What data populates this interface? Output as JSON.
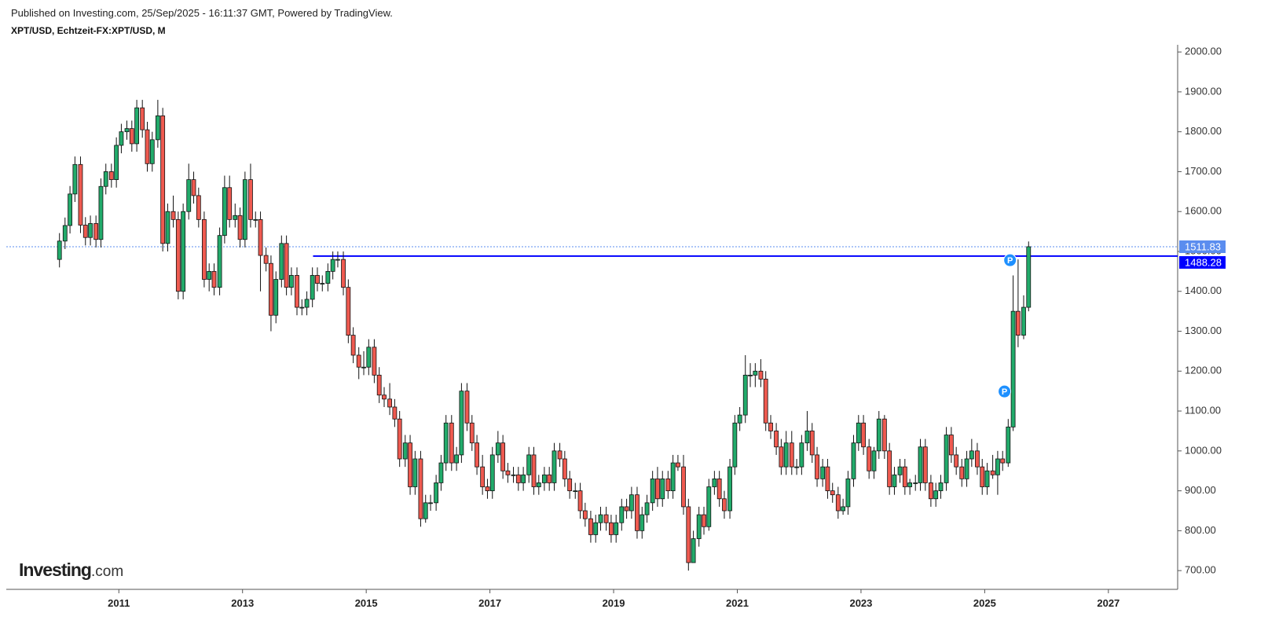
{
  "header": {
    "published": "Published on Investing.com, 25/Sep/2025 - 16:11:37 GMT, Powered by TradingView.",
    "symbol": "XPT/USD, Echtzeit-FX:XPT/USD, M"
  },
  "logo": {
    "brand": "Investing",
    "suffix": ".com"
  },
  "chart_data": {
    "type": "candlestick",
    "up_color": "#22ab6b",
    "down_color": "#ef5a50",
    "xlim": [
      2009.18,
      2028.12
    ],
    "xticks": [
      2011,
      2013,
      2015,
      2017,
      2019,
      2021,
      2023,
      2025,
      2027
    ],
    "ylim": [
      653,
      2018
    ],
    "yticks": [
      {
        "value": 700,
        "label": "700.00"
      },
      {
        "value": 800,
        "label": "800.00"
      },
      {
        "value": 900,
        "label": "900.00"
      },
      {
        "value": 1000,
        "label": "1000.00"
      },
      {
        "value": 1100,
        "label": "1100.00"
      },
      {
        "value": 1200,
        "label": "1200.00"
      },
      {
        "value": 1300,
        "label": "1300.00"
      },
      {
        "value": 1400,
        "label": "1400.00"
      },
      {
        "value": 1500,
        "label": "1500.00"
      },
      {
        "value": 1600,
        "label": "1600.00"
      },
      {
        "value": 1700,
        "label": "1700.00"
      },
      {
        "value": 1800,
        "label": "1800.00"
      },
      {
        "value": 1900,
        "label": "1900.00"
      },
      {
        "value": 2000,
        "label": "2000.00"
      }
    ],
    "last_price": {
      "value": 1511.83,
      "color": "#5b8def"
    },
    "level_line": {
      "value": 1488.28,
      "start_x": 2014.14,
      "color": "#0000ff"
    },
    "markers": [
      {
        "label": "P",
        "x": 2025.41,
        "y": 1478
      },
      {
        "label": "P",
        "x": 2025.32,
        "y": 1149
      }
    ],
    "x": [
      2010.04,
      2010.13,
      2010.21,
      2010.29,
      2010.38,
      2010.46,
      2010.54,
      2010.63,
      2010.71,
      2010.79,
      2010.88,
      2010.96,
      2011.04,
      2011.13,
      2011.21,
      2011.29,
      2011.38,
      2011.46,
      2011.54,
      2011.63,
      2011.71,
      2011.79,
      2011.88,
      2011.96,
      2012.04,
      2012.13,
      2012.21,
      2012.29,
      2012.38,
      2012.46,
      2012.54,
      2012.63,
      2012.71,
      2012.79,
      2012.88,
      2012.96,
      2013.04,
      2013.13,
      2013.21,
      2013.29,
      2013.38,
      2013.46,
      2013.54,
      2013.63,
      2013.71,
      2013.79,
      2013.88,
      2013.96,
      2014.04,
      2014.13,
      2014.21,
      2014.29,
      2014.38,
      2014.46,
      2014.54,
      2014.63,
      2014.71,
      2014.79,
      2014.88,
      2014.96,
      2015.04,
      2015.13,
      2015.21,
      2015.29,
      2015.38,
      2015.46,
      2015.54,
      2015.63,
      2015.71,
      2015.79,
      2015.88,
      2015.96,
      2016.04,
      2016.13,
      2016.21,
      2016.29,
      2016.38,
      2016.46,
      2016.54,
      2016.63,
      2016.71,
      2016.79,
      2016.88,
      2016.96,
      2017.04,
      2017.13,
      2017.21,
      2017.29,
      2017.38,
      2017.46,
      2017.54,
      2017.63,
      2017.71,
      2017.79,
      2017.88,
      2017.96,
      2018.04,
      2018.13,
      2018.21,
      2018.29,
      2018.38,
      2018.46,
      2018.54,
      2018.63,
      2018.71,
      2018.79,
      2018.88,
      2018.96,
      2019.04,
      2019.13,
      2019.21,
      2019.29,
      2019.38,
      2019.46,
      2019.54,
      2019.63,
      2019.71,
      2019.79,
      2019.88,
      2019.96,
      2020.04,
      2020.13,
      2020.21,
      2020.29,
      2020.38,
      2020.46,
      2020.54,
      2020.63,
      2020.71,
      2020.79,
      2020.88,
      2020.96,
      2021.04,
      2021.13,
      2021.21,
      2021.29,
      2021.38,
      2021.46,
      2021.54,
      2021.63,
      2021.71,
      2021.79,
      2021.88,
      2021.96,
      2022.04,
      2022.13,
      2022.21,
      2022.29,
      2022.38,
      2022.46,
      2022.54,
      2022.63,
      2022.71,
      2022.79,
      2022.88,
      2022.96,
      2023.04,
      2023.13,
      2023.21,
      2023.29,
      2023.38,
      2023.46,
      2023.54,
      2023.63,
      2023.71,
      2023.79,
      2023.88,
      2023.96,
      2024.04,
      2024.13,
      2024.21,
      2024.29,
      2024.38,
      2024.46,
      2024.54,
      2024.63,
      2024.71,
      2024.79,
      2024.88,
      2024.96,
      2025.04,
      2025.13,
      2025.21,
      2025.29,
      2025.38,
      2025.46,
      2025.54,
      2025.63,
      2025.71
    ],
    "open": [
      1480,
      1526,
      1565,
      1644,
      1718,
      1566,
      1535,
      1570,
      1530,
      1663,
      1700,
      1680,
      1766,
      1800,
      1808,
      1770,
      1860,
      1805,
      1720,
      1780,
      1840,
      1520,
      1600,
      1580,
      1400,
      1600,
      1680,
      1640,
      1580,
      1430,
      1450,
      1410,
      1540,
      1660,
      1580,
      1590,
      1530,
      1680,
      1580,
      1580,
      1490,
      1470,
      1340,
      1430,
      1520,
      1410,
      1440,
      1360,
      1360,
      1380,
      1440,
      1420,
      1420,
      1450,
      1480,
      1480,
      1410,
      1290,
      1240,
      1210,
      1210,
      1260,
      1190,
      1140,
      1130,
      1110,
      1080,
      980,
      1020,
      910,
      980,
      830,
      870,
      870,
      920,
      970,
      1070,
      970,
      990,
      1150,
      1070,
      1020,
      960,
      910,
      900,
      990,
      1020,
      950,
      940,
      940,
      920,
      940,
      990,
      910,
      920,
      940,
      920,
      1000,
      980,
      930,
      900,
      900,
      850,
      830,
      790,
      820,
      840,
      820,
      790,
      820,
      860,
      850,
      890,
      800,
      840,
      870,
      930,
      880,
      930,
      900,
      970,
      960,
      860,
      720,
      780,
      840,
      810,
      910,
      930,
      880,
      850,
      960,
      1070,
      1090,
      1190,
      1190,
      1200,
      1180,
      1070,
      1050,
      1010,
      960,
      1020,
      960,
      960,
      1020,
      1050,
      990,
      930,
      960,
      900,
      890,
      850,
      860,
      930,
      1020,
      1070,
      1010,
      950,
      1000,
      1080,
      1000,
      910,
      940,
      960,
      910,
      920,
      920,
      1010,
      920,
      880,
      900,
      920,
      1040,
      990,
      960,
      930,
      980,
      1000,
      960,
      910,
      950,
      940,
      980,
      970,
      1060,
      1350,
      1290,
      1360
    ],
    "high": [
      1546,
      1585,
      1664,
      1738,
      1738,
      1586,
      1590,
      1590,
      1683,
      1720,
      1720,
      1786,
      1820,
      1828,
      1828,
      1880,
      1880,
      1825,
      1800,
      1880,
      1860,
      1620,
      1640,
      1600,
      1620,
      1720,
      1700,
      1660,
      1600,
      1470,
      1470,
      1560,
      1690,
      1690,
      1620,
      1610,
      1700,
      1720,
      1600,
      1600,
      1510,
      1490,
      1450,
      1540,
      1540,
      1460,
      1460,
      1380,
      1400,
      1460,
      1460,
      1440,
      1470,
      1500,
      1500,
      1500,
      1430,
      1310,
      1260,
      1250,
      1280,
      1280,
      1210,
      1160,
      1170,
      1130,
      1100,
      1040,
      1040,
      1000,
      1000,
      890,
      890,
      940,
      990,
      1090,
      1090,
      1010,
      1170,
      1170,
      1090,
      1040,
      990,
      930,
      1010,
      1050,
      1040,
      970,
      960,
      960,
      960,
      1010,
      1010,
      940,
      960,
      960,
      1020,
      1020,
      1000,
      950,
      920,
      920,
      870,
      850,
      840,
      860,
      860,
      840,
      840,
      880,
      880,
      910,
      910,
      860,
      890,
      950,
      960,
      950,
      950,
      990,
      990,
      990,
      880,
      800,
      860,
      860,
      930,
      950,
      950,
      900,
      980,
      1090,
      1110,
      1240,
      1220,
      1220,
      1230,
      1200,
      1090,
      1070,
      1030,
      1050,
      1050,
      980,
      1040,
      1100,
      1070,
      1010,
      980,
      980,
      920,
      910,
      880,
      950,
      1040,
      1090,
      1090,
      1030,
      1010,
      1100,
      1090,
      1020,
      960,
      980,
      980,
      930,
      940,
      1030,
      1030,
      940,
      920,
      940,
      1060,
      1060,
      1010,
      980,
      1000,
      1030,
      1020,
      980,
      970,
      990,
      1000,
      1000,
      1080,
      1440,
      1480,
      1390,
      1525
    ],
    "low": [
      1460,
      1506,
      1545,
      1624,
      1546,
      1515,
      1515,
      1510,
      1510,
      1643,
      1660,
      1660,
      1746,
      1780,
      1750,
      1750,
      1785,
      1700,
      1700,
      1760,
      1500,
      1500,
      1560,
      1380,
      1380,
      1580,
      1620,
      1560,
      1410,
      1400,
      1390,
      1390,
      1520,
      1560,
      1560,
      1510,
      1510,
      1560,
      1560,
      1400,
      1450,
      1300,
      1320,
      1410,
      1390,
      1390,
      1340,
      1340,
      1340,
      1360,
      1400,
      1400,
      1400,
      1430,
      1460,
      1390,
      1270,
      1220,
      1180,
      1190,
      1190,
      1170,
      1120,
      1110,
      1090,
      1060,
      960,
      960,
      890,
      890,
      810,
      820,
      850,
      850,
      900,
      950,
      950,
      950,
      970,
      1050,
      1000,
      940,
      890,
      880,
      880,
      970,
      930,
      920,
      920,
      900,
      900,
      920,
      890,
      890,
      900,
      900,
      900,
      960,
      910,
      880,
      880,
      830,
      810,
      770,
      770,
      800,
      800,
      770,
      770,
      800,
      830,
      830,
      780,
      780,
      820,
      850,
      860,
      860,
      880,
      880,
      950,
      840,
      700,
      720,
      760,
      790,
      800,
      890,
      860,
      830,
      830,
      940,
      1050,
      1070,
      1160,
      1160,
      1160,
      1050,
      1030,
      990,
      940,
      940,
      940,
      940,
      940,
      1000,
      970,
      910,
      910,
      880,
      870,
      830,
      840,
      840,
      910,
      1000,
      990,
      930,
      930,
      980,
      980,
      890,
      890,
      920,
      890,
      890,
      900,
      900,
      900,
      860,
      860,
      880,
      900,
      970,
      940,
      910,
      910,
      960,
      940,
      890,
      890,
      930,
      890,
      950,
      960,
      1050,
      1260,
      1280,
      1350
    ],
    "close": [
      1526,
      1565,
      1644,
      1718,
      1566,
      1535,
      1570,
      1530,
      1663,
      1700,
      1680,
      1766,
      1800,
      1808,
      1770,
      1860,
      1805,
      1720,
      1780,
      1840,
      1520,
      1600,
      1580,
      1400,
      1600,
      1680,
      1640,
      1580,
      1430,
      1450,
      1410,
      1540,
      1660,
      1580,
      1590,
      1530,
      1680,
      1580,
      1580,
      1490,
      1470,
      1340,
      1430,
      1520,
      1410,
      1440,
      1360,
      1360,
      1380,
      1440,
      1420,
      1420,
      1450,
      1480,
      1480,
      1410,
      1290,
      1240,
      1210,
      1210,
      1260,
      1190,
      1140,
      1130,
      1110,
      1080,
      980,
      1020,
      910,
      980,
      830,
      870,
      870,
      920,
      970,
      1070,
      970,
      990,
      1150,
      1070,
      1020,
      960,
      910,
      900,
      990,
      1020,
      950,
      940,
      940,
      920,
      940,
      990,
      910,
      920,
      940,
      920,
      1000,
      980,
      930,
      900,
      900,
      850,
      830,
      790,
      820,
      840,
      820,
      790,
      820,
      860,
      850,
      890,
      800,
      840,
      870,
      930,
      880,
      930,
      900,
      970,
      960,
      860,
      720,
      780,
      840,
      810,
      910,
      930,
      880,
      850,
      960,
      1070,
      1090,
      1190,
      1190,
      1200,
      1180,
      1070,
      1050,
      1010,
      960,
      1020,
      960,
      960,
      1020,
      1050,
      990,
      930,
      960,
      900,
      890,
      850,
      860,
      930,
      1020,
      1070,
      1010,
      950,
      1000,
      1080,
      1000,
      910,
      940,
      960,
      910,
      920,
      920,
      1010,
      920,
      880,
      900,
      920,
      1040,
      990,
      960,
      930,
      980,
      1000,
      960,
      910,
      950,
      940,
      980,
      970,
      1060,
      1350,
      1290,
      1360,
      1511.83
    ]
  }
}
